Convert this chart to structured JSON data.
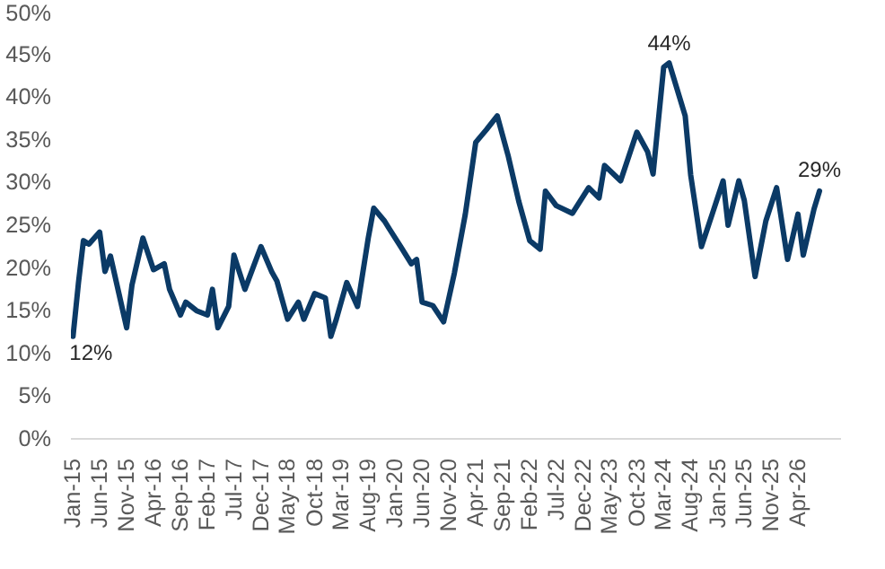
{
  "chart_data": {
    "type": "line",
    "x": [
      "2015-01",
      "2015-02",
      "2015-03",
      "2015-04",
      "2015-06",
      "2015-07",
      "2015-08",
      "2015-11",
      "2015-12",
      "2016-02",
      "2016-04",
      "2016-06",
      "2016-07",
      "2016-09",
      "2016-10",
      "2016-12",
      "2017-02",
      "2017-03",
      "2017-04",
      "2017-06",
      "2017-07",
      "2017-09",
      "2017-12",
      "2018-02",
      "2018-03",
      "2018-05",
      "2018-07",
      "2018-08",
      "2018-10",
      "2018-12",
      "2019-01",
      "2019-02",
      "2019-04",
      "2019-06",
      "2019-08",
      "2019-09",
      "2019-11",
      "2019-12",
      "2020-02",
      "2020-04",
      "2020-05",
      "2020-06",
      "2020-08",
      "2020-10",
      "2020-12",
      "2021-02",
      "2021-04",
      "2021-06",
      "2021-08",
      "2021-10",
      "2021-12",
      "2022-02",
      "2022-04",
      "2022-05",
      "2022-07",
      "2022-10",
      "2023-01",
      "2023-03",
      "2023-04",
      "2023-07",
      "2023-10",
      "2023-12",
      "2024-01",
      "2024-03",
      "2024-04",
      "2024-07",
      "2024-08",
      "2024-10",
      "2024-12",
      "2025-02",
      "2025-03",
      "2025-05",
      "2025-06",
      "2025-08",
      "2025-10",
      "2025-12",
      "2026-02",
      "2026-04",
      "2026-05",
      "2026-07",
      "2026-08"
    ],
    "series": [
      {
        "color": "#0b3a66",
        "values": [
          12,
          18.3,
          23.2,
          22.8,
          24.2,
          19.6,
          21.4,
          13,
          18,
          23.5,
          19.8,
          20.5,
          17.5,
          14.5,
          16,
          15,
          14.5,
          17.5,
          13,
          15.5,
          21.5,
          17.5,
          22.5,
          19.5,
          18.5,
          14,
          16,
          14,
          17,
          16.5,
          12,
          14,
          18.3,
          15.5,
          23.5,
          27,
          25.5,
          24.5,
          22.5,
          20.5,
          21,
          16,
          15.6,
          13.7,
          19.4,
          26.3,
          34.7,
          36.2,
          37.8,
          33.2,
          27.8,
          23.2,
          22.2,
          29,
          27.3,
          26.4,
          29.4,
          28.2,
          32,
          30.2,
          35.9,
          33.6,
          31,
          43.5,
          44,
          37.8,
          30.9,
          22.5,
          26.3,
          30.2,
          25,
          30.2,
          27.9,
          19,
          25.5,
          29.4,
          21,
          26.3,
          21.5,
          26.9,
          29
        ]
      }
    ],
    "xlim": [
      "2014-12-20",
      "2026-12-01"
    ],
    "xticks": [
      {
        "value": "2015-01",
        "label": "Jan-15"
      },
      {
        "value": "2015-06",
        "label": "Jun-15"
      },
      {
        "value": "2015-11",
        "label": "Nov-15"
      },
      {
        "value": "2016-04",
        "label": "Apr-16"
      },
      {
        "value": "2016-09",
        "label": "Sep-16"
      },
      {
        "value": "2017-02",
        "label": "Feb-17"
      },
      {
        "value": "2017-07",
        "label": "Jul-17"
      },
      {
        "value": "2017-12",
        "label": "Dec-17"
      },
      {
        "value": "2018-05",
        "label": "May-18"
      },
      {
        "value": "2018-10",
        "label": "Oct-18"
      },
      {
        "value": "2019-03",
        "label": "Mar-19"
      },
      {
        "value": "2019-08",
        "label": "Aug-19"
      },
      {
        "value": "2020-01",
        "label": "Jan-20"
      },
      {
        "value": "2020-06",
        "label": "Jun-20"
      },
      {
        "value": "2020-11",
        "label": "Nov-20"
      },
      {
        "value": "2021-04",
        "label": "Apr-21"
      },
      {
        "value": "2021-09",
        "label": "Sep-21"
      },
      {
        "value": "2022-02",
        "label": "Feb-22"
      },
      {
        "value": "2022-07",
        "label": "Jul-22"
      },
      {
        "value": "2022-12",
        "label": "Dec-22"
      },
      {
        "value": "2023-05",
        "label": "May-23"
      },
      {
        "value": "2023-10",
        "label": "Oct-23"
      },
      {
        "value": "2024-03",
        "label": "Mar-24"
      },
      {
        "value": "2024-08",
        "label": "Aug-24"
      },
      {
        "value": "2025-01",
        "label": "Jan-25"
      },
      {
        "value": "2025-06",
        "label": "Jun-25"
      },
      {
        "value": "2025-11",
        "label": "Nov-25"
      },
      {
        "value": "2026-04",
        "label": "Apr-26"
      }
    ],
    "ylim": [
      0,
      50
    ],
    "yticks": [
      {
        "value": 0,
        "label": "0%"
      },
      {
        "value": 5,
        "label": "5%"
      },
      {
        "value": 10,
        "label": "10%"
      },
      {
        "value": 15,
        "label": "15%"
      },
      {
        "value": 20,
        "label": "20%"
      },
      {
        "value": 25,
        "label": "25%"
      },
      {
        "value": 30,
        "label": "30%"
      },
      {
        "value": 35,
        "label": "35%"
      },
      {
        "value": 40,
        "label": "40%"
      },
      {
        "value": 45,
        "label": "45%"
      },
      {
        "value": 50,
        "label": "50%"
      }
    ],
    "grid": false,
    "marker": "none",
    "line_style": "solid",
    "annotations": [
      {
        "text": "12%",
        "x": "2015-01",
        "y": 12
      },
      {
        "text": "44%",
        "x": "2024-04",
        "y": 44
      },
      {
        "text": "29%",
        "x": "2026-08",
        "y": 29
      }
    ]
  }
}
